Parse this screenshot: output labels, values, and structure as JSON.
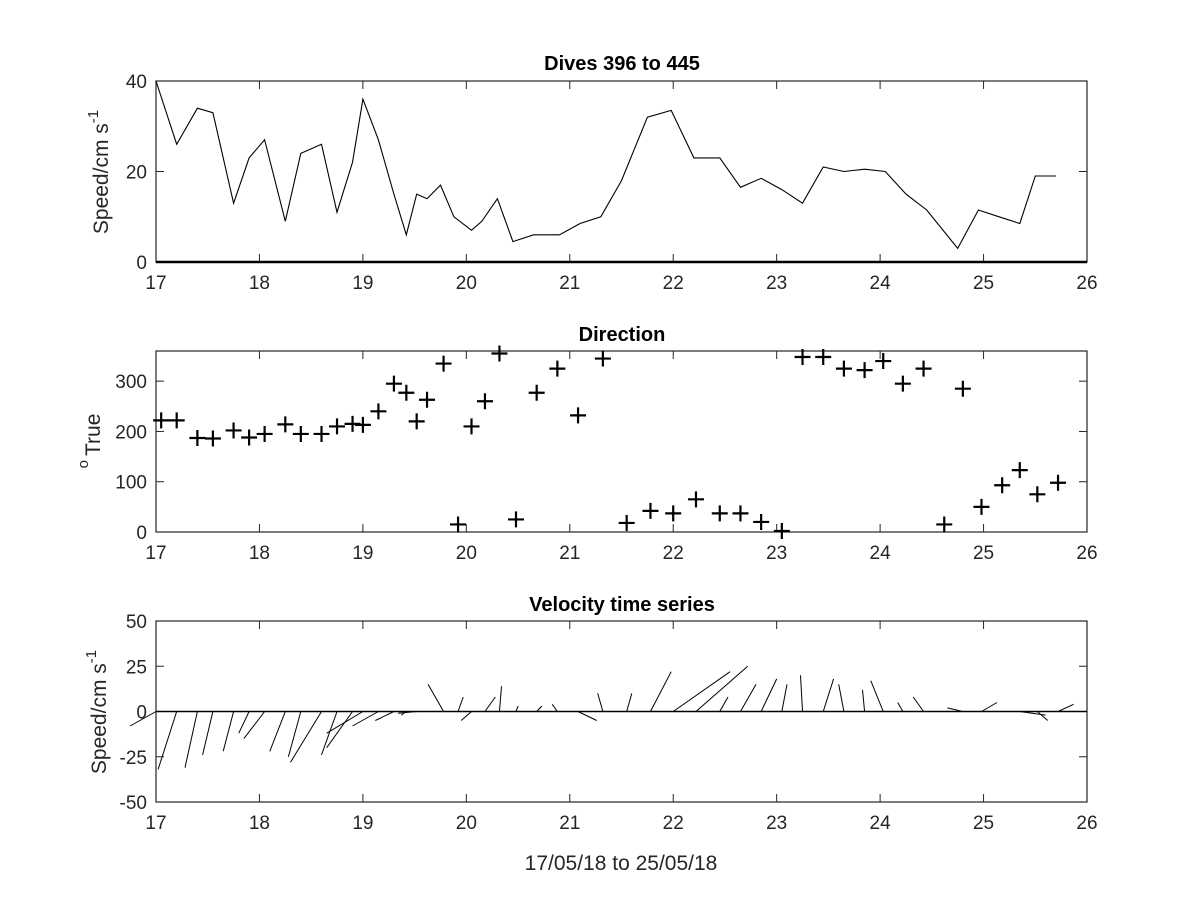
{
  "chart_data": [
    {
      "type": "line",
      "title": "Dives 396 to 445",
      "ylabel": "Speed/cm s",
      "ylabel_superscript": "-1",
      "xlim": [
        17,
        26
      ],
      "ylim": [
        0,
        40
      ],
      "xticks": [
        17,
        18,
        19,
        20,
        21,
        22,
        23,
        24,
        25,
        26
      ],
      "yticks": [
        0,
        20,
        40
      ],
      "grid": false,
      "x": [
        17.0,
        17.2,
        17.4,
        17.55,
        17.75,
        17.9,
        18.05,
        18.25,
        18.4,
        18.6,
        18.75,
        18.9,
        19.0,
        19.15,
        19.3,
        19.42,
        19.52,
        19.62,
        19.75,
        19.88,
        20.05,
        20.15,
        20.3,
        20.45,
        20.65,
        20.9,
        21.1,
        21.3,
        21.5,
        21.75,
        21.98,
        22.2,
        22.45,
        22.65,
        22.85,
        23.05,
        23.25,
        23.45,
        23.65,
        23.85,
        24.05,
        24.25,
        24.45,
        24.75,
        24.95,
        25.15,
        25.35,
        25.5,
        25.7
      ],
      "y": [
        40,
        26,
        34,
        33,
        13,
        23,
        27,
        9,
        24,
        26,
        11,
        22,
        36,
        27,
        15,
        6,
        15,
        14,
        17,
        10,
        7,
        9,
        14,
        4.5,
        6,
        6,
        8.5,
        10,
        18,
        32,
        33.5,
        23,
        23,
        16.5,
        18.5,
        16,
        13,
        21,
        20,
        20.5,
        20,
        15,
        11.5,
        3,
        11.5,
        10,
        8.5,
        19,
        19
      ]
    },
    {
      "type": "scatter",
      "title": "Direction",
      "ylabel": "True",
      "ylabel_prefix": "o",
      "xlim": [
        17,
        26
      ],
      "ylim": [
        0,
        360
      ],
      "xticks": [
        17,
        18,
        19,
        20,
        21,
        22,
        23,
        24,
        25,
        26
      ],
      "yticks": [
        0,
        100,
        200,
        300
      ],
      "marker": "+",
      "grid": false,
      "x": [
        17.05,
        17.2,
        17.4,
        17.55,
        17.75,
        17.9,
        18.05,
        18.25,
        18.4,
        18.6,
        18.75,
        18.9,
        19.0,
        19.15,
        19.3,
        19.42,
        19.52,
        19.62,
        19.78,
        19.92,
        20.05,
        20.18,
        20.32,
        20.48,
        20.68,
        20.88,
        21.08,
        21.32,
        21.55,
        21.78,
        22.0,
        22.22,
        22.45,
        22.65,
        22.85,
        23.05,
        23.25,
        23.45,
        23.65,
        23.85,
        24.03,
        24.22,
        24.42,
        24.62,
        24.8,
        24.98,
        25.18,
        25.35,
        25.52,
        25.72
      ],
      "y": [
        222,
        222,
        187,
        186,
        202,
        188,
        195,
        214,
        195,
        195,
        210,
        215,
        213,
        240,
        295,
        277,
        220,
        263,
        335,
        15,
        210,
        260,
        355,
        25,
        277,
        325,
        232,
        345,
        18,
        42,
        37,
        65,
        37,
        37,
        20,
        2,
        348,
        348,
        325,
        322,
        340,
        295,
        325,
        15,
        285,
        50,
        93,
        123,
        75,
        98
      ]
    },
    {
      "type": "line",
      "subtype": "stick-plot",
      "title": "Velocity time series",
      "ylabel": "Speed/cm s",
      "ylabel_superscript": "-1",
      "xlabel": "17/05/18 to 25/05/18",
      "xlim": [
        17,
        26
      ],
      "ylim": [
        -50,
        50
      ],
      "xticks": [
        17,
        18,
        19,
        20,
        21,
        22,
        23,
        24,
        25,
        26
      ],
      "yticks": [
        -50,
        -25,
        0,
        25,
        50
      ],
      "grid": false,
      "x": [
        17.0,
        17.2,
        17.4,
        17.55,
        17.75,
        17.9,
        18.05,
        18.25,
        18.4,
        18.6,
        18.75,
        18.9,
        19.0,
        19.15,
        19.3,
        19.42,
        19.52,
        19.62,
        19.78,
        19.92,
        20.05,
        20.18,
        20.32,
        20.48,
        20.68,
        20.88,
        21.08,
        21.32,
        21.55,
        21.78,
        22.0,
        22.22,
        22.45,
        22.65,
        22.85,
        23.05,
        23.25,
        23.45,
        23.65,
        23.85,
        24.03,
        24.22,
        24.42,
        24.62,
        24.8,
        24.98,
        25.18,
        25.35,
        25.52,
        25.72
      ],
      "u": [
        -0.25,
        -0.18,
        -0.12,
        -0.1,
        -0.1,
        -0.1,
        -0.2,
        -0.15,
        -0.12,
        -0.3,
        -0.15,
        -0.25,
        -0.35,
        -0.25,
        -0.18,
        -0.05,
        -0.18,
        -0.05,
        -0.15,
        0.05,
        -0.1,
        0.1,
        0.02,
        0.02,
        0.05,
        -0.05,
        0.18,
        -0.05,
        0.05,
        0.2,
        0.55,
        0.5,
        0.08,
        0.15,
        0.15,
        0.05,
        -0.02,
        0.1,
        -0.05,
        -0.02,
        -0.12,
        -0.05,
        -0.1,
        0.0,
        -0.15,
        0.15,
        0.12,
        0.25,
        0.1,
        0.15
      ],
      "v": [
        -8,
        -32,
        -31,
        -24,
        -22,
        -12,
        -15,
        -22,
        -25,
        -28,
        -24,
        -20,
        -12,
        -8,
        -5,
        -2,
        -1,
        0,
        15,
        8,
        -5,
        8,
        14,
        3,
        3,
        4,
        -5,
        10,
        10,
        22,
        22,
        25,
        8,
        15,
        18,
        15,
        20,
        18,
        15,
        12,
        17,
        5,
        8,
        0,
        2,
        5,
        0,
        -2,
        -5,
        4
      ]
    }
  ]
}
